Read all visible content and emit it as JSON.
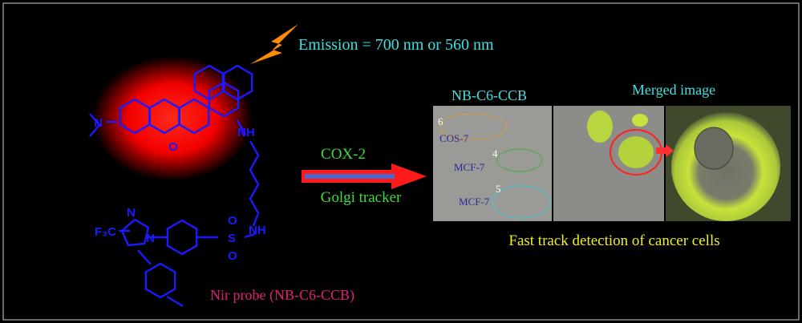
{
  "header": {
    "emission": "Emission = 700 nm or 560 nm"
  },
  "molecule": {
    "atoms": [
      "N",
      "O",
      "NH",
      "NH",
      "F₃C",
      "N",
      "N",
      "S",
      "O",
      "O"
    ],
    "caption": "Nir probe (NB-C6-CCB)"
  },
  "arrow": {
    "top": "COX-2",
    "bottom": "Golgi tracker"
  },
  "panels": {
    "left_title": "NB-C6-CCB",
    "right_title": "Merged image",
    "labels": [
      {
        "number": "6",
        "cell": "COS-7"
      },
      {
        "number": "4",
        "cell": "MCF-7"
      },
      {
        "number": "5",
        "cell": "MCF-7"
      }
    ],
    "caption": "Fast track detection of cancer cells"
  }
}
